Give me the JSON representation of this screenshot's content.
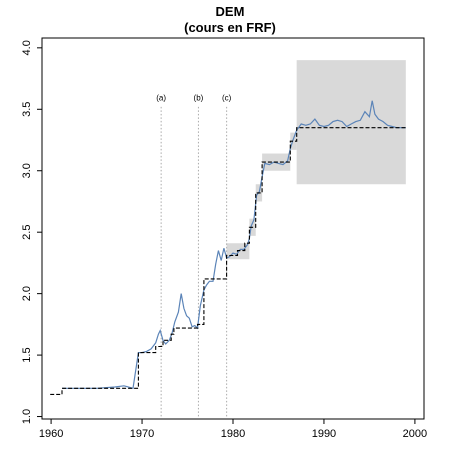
{
  "chart_data": {
    "type": "line",
    "title": "DEM",
    "subtitle": "(cours en FRF)",
    "xlabel": "",
    "ylabel": "",
    "xlim": [
      1959,
      2001
    ],
    "ylim": [
      0.98,
      4.08
    ],
    "x_ticks": [
      1960,
      1970,
      1980,
      1990,
      2000
    ],
    "y_ticks": [
      1.0,
      1.5,
      2.0,
      2.5,
      3.0,
      3.5,
      4.0
    ],
    "x_tick_labels": [
      "1960",
      "1970",
      "1980",
      "1990",
      "2000"
    ],
    "y_tick_labels": [
      "1.0",
      "1.5",
      "2.0",
      "2.5",
      "3.0",
      "3.5",
      "4.0"
    ],
    "grid": false,
    "colors": {
      "market": "#5b84b8",
      "parity": "#000000",
      "band": "#d9d9d9",
      "event": "#aaaaaa"
    },
    "events": [
      {
        "label": "(a)",
        "x": 1972.1
      },
      {
        "label": "(b)",
        "x": 1976.2
      },
      {
        "label": "(c)",
        "x": 1979.3
      }
    ],
    "fluctuation_bands": [
      {
        "x0": 1979.3,
        "x1": 1981.8,
        "y0": 2.28,
        "y1": 2.41
      },
      {
        "x0": 1981.8,
        "x1": 1982.5,
        "y0": 2.47,
        "y1": 2.61
      },
      {
        "x0": 1982.5,
        "x1": 1983.2,
        "y0": 2.75,
        "y1": 2.89
      },
      {
        "x0": 1983.2,
        "x1": 1986.3,
        "y0": 3.0,
        "y1": 3.14
      },
      {
        "x0": 1986.3,
        "x1": 1987.0,
        "y0": 3.17,
        "y1": 3.31
      },
      {
        "x0": 1987.0,
        "x1": 1999.0,
        "y0": 2.89,
        "y1": 3.9
      }
    ],
    "series": [
      {
        "style": "dashed",
        "x": [
          1959.9,
          1961.2,
          1961.2,
          1969.6,
          1969.6,
          1971.5,
          1971.5,
          1972.3,
          1972.3,
          1973.2,
          1973.2,
          1973.5,
          1973.5,
          1976.1,
          1976.1,
          1976.8,
          1976.8,
          1979.3,
          1979.3,
          1980.5,
          1980.5,
          1981.3,
          1981.3,
          1981.8,
          1981.8,
          1982.5,
          1982.5,
          1983.2,
          1983.2,
          1986.3,
          1986.3,
          1987.0,
          1987.0,
          1999.0
        ],
        "y": [
          1.18,
          1.18,
          1.23,
          1.23,
          1.52,
          1.52,
          1.57,
          1.57,
          1.62,
          1.62,
          1.67,
          1.67,
          1.72,
          1.72,
          1.75,
          1.75,
          2.12,
          2.12,
          2.31,
          2.31,
          2.35,
          2.35,
          2.41,
          2.41,
          2.54,
          2.54,
          2.82,
          2.82,
          3.07,
          3.07,
          3.24,
          3.24,
          3.35,
          3.35
        ]
      },
      {
        "style": "solid",
        "x": [
          1961.2,
          1963.0,
          1965.0,
          1967.0,
          1968.0,
          1969.0,
          1969.6,
          1970.0,
          1970.5,
          1971.0,
          1971.5,
          1971.8,
          1972.0,
          1972.3,
          1972.6,
          1973.0,
          1973.3,
          1973.6,
          1974.0,
          1974.3,
          1974.6,
          1974.9,
          1975.2,
          1975.5,
          1975.8,
          1976.1,
          1976.4,
          1976.8,
          1977.1,
          1977.4,
          1977.8,
          1978.1,
          1978.4,
          1978.7,
          1979.0,
          1979.3,
          1979.6,
          1980.0,
          1980.4,
          1980.8,
          1981.2,
          1981.6,
          1981.8,
          1982.0,
          1982.3,
          1982.6,
          1982.9,
          1983.2,
          1983.5,
          1984.0,
          1984.5,
          1985.0,
          1985.5,
          1986.0,
          1986.3,
          1986.6,
          1987.0,
          1987.5,
          1988.0,
          1988.5,
          1989.0,
          1989.5,
          1990.0,
          1990.5,
          1991.0,
          1991.5,
          1992.0,
          1992.5,
          1993.0,
          1993.5,
          1994.0,
          1994.5,
          1995.0,
          1995.3,
          1995.6,
          1996.0,
          1996.5,
          1997.0,
          1997.5,
          1998.0,
          1998.5,
          1999.0
        ],
        "y": [
          1.23,
          1.23,
          1.23,
          1.24,
          1.25,
          1.23,
          1.52,
          1.52,
          1.53,
          1.55,
          1.6,
          1.67,
          1.7,
          1.62,
          1.59,
          1.62,
          1.68,
          1.77,
          1.85,
          2.0,
          1.88,
          1.82,
          1.8,
          1.73,
          1.74,
          1.72,
          1.9,
          2.03,
          2.07,
          2.1,
          2.1,
          2.24,
          2.35,
          2.27,
          2.37,
          2.29,
          2.3,
          2.33,
          2.32,
          2.36,
          2.36,
          2.4,
          2.45,
          2.55,
          2.6,
          2.8,
          2.83,
          2.95,
          3.06,
          3.05,
          3.07,
          3.06,
          3.05,
          3.08,
          3.18,
          3.25,
          3.33,
          3.38,
          3.37,
          3.38,
          3.42,
          3.37,
          3.36,
          3.37,
          3.4,
          3.41,
          3.4,
          3.36,
          3.38,
          3.4,
          3.41,
          3.48,
          3.44,
          3.57,
          3.46,
          3.42,
          3.4,
          3.37,
          3.36,
          3.35,
          3.35,
          3.35
        ]
      }
    ]
  }
}
